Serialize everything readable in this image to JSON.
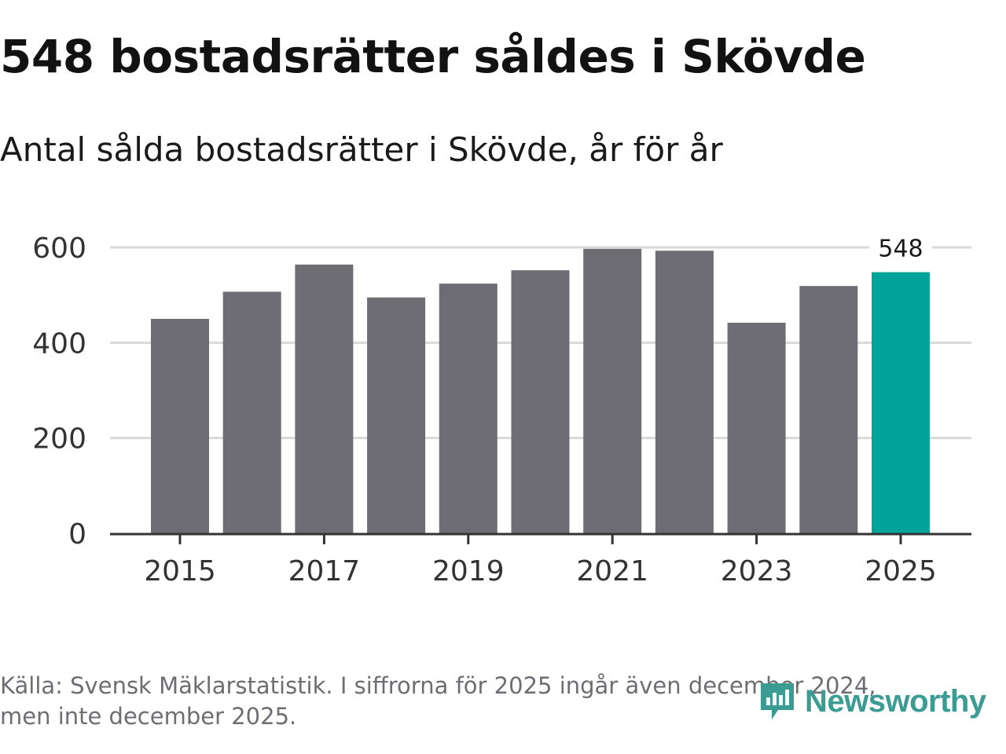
{
  "title": "548 bostadsrätter såldes i Skövde",
  "subtitle": "Antal sålda bostadsrätter i Skövde, år för år",
  "footer": {
    "line1": "Källa: Svensk Mäklarstatistik. I siffrorna för 2025 ingår även december 2024,",
    "line2": "men inte december 2025."
  },
  "logo": {
    "text": "Newsworthy",
    "icon": "newsworthy-logo-icon",
    "color": "#3a9c93"
  },
  "colors": {
    "bar": "#6e6d73",
    "highlight": "#00a499",
    "grid": "#d9d9d9",
    "axis": "#333333",
    "tick_text": "#333333"
  },
  "chart_data": {
    "type": "bar",
    "categories": [
      "2015",
      "2016",
      "2017",
      "2018",
      "2019",
      "2020",
      "2021",
      "2022",
      "2023",
      "2024",
      "2025"
    ],
    "values": [
      450,
      507,
      564,
      495,
      524,
      552,
      597,
      593,
      442,
      519,
      548
    ],
    "highlight_category": "2025",
    "annotation": {
      "category": "2025",
      "label": "548"
    },
    "x_tick_labels": [
      "2015",
      "2017",
      "2019",
      "2021",
      "2023",
      "2025"
    ],
    "y_ticks": [
      0,
      200,
      400,
      600
    ],
    "y_tick_labels": [
      "0",
      "200",
      "400",
      "600"
    ],
    "ylim": [
      0,
      600
    ],
    "grid": true,
    "xlabel": "",
    "ylabel": ""
  }
}
